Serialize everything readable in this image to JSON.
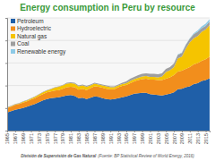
{
  "chart_data": {
    "type": "area",
    "stacked": true,
    "title": "Energy consumption in Peru by resource",
    "annotations": [
      "División de Supervisión de Gas Natural",
      "(Fuente: BP Statistical Review of World Energy, 2016)"
    ],
    "x": [
      1965,
      1966,
      1967,
      1968,
      1969,
      1970,
      1971,
      1972,
      1973,
      1974,
      1975,
      1976,
      1977,
      1978,
      1979,
      1980,
      1981,
      1982,
      1983,
      1984,
      1985,
      1986,
      1987,
      1988,
      1989,
      1990,
      1991,
      1992,
      1993,
      1994,
      1995,
      1996,
      1997,
      1998,
      1999,
      2000,
      2001,
      2002,
      2003,
      2004,
      2005,
      2006,
      2007,
      2008,
      2009,
      2010,
      2011,
      2012,
      2013,
      2014,
      2015,
      2016
    ],
    "xlim": [
      1965,
      2016
    ],
    "xticks": [
      1965,
      1967,
      1969,
      1971,
      1973,
      1975,
      1977,
      1979,
      1981,
      1983,
      1985,
      1987,
      1989,
      1991,
      1993,
      1995,
      1997,
      1999,
      2001,
      2003,
      2005,
      2007,
      2009,
      2011,
      2013,
      2015
    ],
    "ylim": [
      0,
      25
    ],
    "yticks": [
      0,
      5,
      10,
      15,
      20,
      25
    ],
    "grid": true,
    "tick_labels": "x",
    "legend": "top-left",
    "series": [
      {
        "name": "Petroleum",
        "color": "#1f5fa8",
        "values": [
          4.0,
          4.3,
          4.6,
          4.8,
          5.0,
          5.3,
          5.6,
          5.9,
          6.3,
          6.7,
          7.0,
          7.2,
          7.3,
          7.4,
          7.6,
          7.8,
          7.9,
          7.7,
          7.2,
          7.3,
          7.0,
          7.3,
          7.6,
          7.5,
          7.2,
          7.0,
          6.9,
          7.0,
          7.2,
          7.4,
          7.6,
          7.9,
          8.2,
          8.3,
          8.4,
          8.4,
          8.1,
          8.0,
          7.9,
          7.8,
          8.0,
          8.2,
          8.5,
          9.2,
          9.3,
          9.6,
          9.8,
          10.3,
          10.5,
          11.0,
          11.2,
          11.6
        ]
      },
      {
        "name": "Hydroelectric",
        "color": "#f28e1c",
        "values": [
          1.0,
          1.0,
          1.1,
          1.1,
          1.2,
          1.2,
          1.3,
          1.3,
          1.4,
          1.4,
          1.5,
          1.5,
          1.6,
          1.6,
          1.7,
          1.8,
          1.8,
          1.9,
          1.9,
          2.0,
          2.0,
          2.1,
          2.2,
          2.2,
          2.3,
          2.3,
          2.3,
          2.2,
          2.4,
          2.5,
          2.5,
          2.6,
          2.7,
          2.9,
          3.0,
          3.1,
          3.2,
          3.3,
          3.3,
          3.4,
          3.5,
          3.6,
          3.8,
          3.9,
          4.0,
          4.1,
          4.3,
          4.4,
          4.5,
          4.5,
          4.6,
          4.8
        ]
      },
      {
        "name": "Natural gas",
        "color": "#f5c400",
        "values": [
          0.1,
          0.1,
          0.1,
          0.1,
          0.2,
          0.2,
          0.2,
          0.3,
          0.3,
          0.4,
          0.4,
          0.5,
          0.6,
          0.7,
          0.7,
          0.8,
          0.8,
          0.8,
          0.7,
          0.7,
          0.7,
          0.6,
          0.6,
          0.5,
          0.5,
          0.5,
          0.4,
          0.4,
          0.4,
          0.4,
          0.4,
          0.5,
          0.5,
          0.5,
          0.6,
          0.6,
          0.6,
          0.6,
          0.6,
          0.8,
          1.5,
          1.6,
          1.8,
          2.9,
          3.1,
          4.5,
          5.5,
          5.8,
          6.0,
          6.4,
          6.6,
          7.0
        ]
      },
      {
        "name": "Coal",
        "color": "#9e9e9e",
        "values": [
          0.1,
          0.1,
          0.1,
          0.1,
          0.1,
          0.1,
          0.1,
          0.1,
          0.1,
          0.1,
          0.1,
          0.1,
          0.1,
          0.1,
          0.1,
          0.2,
          0.2,
          0.2,
          0.2,
          0.2,
          0.2,
          0.2,
          0.2,
          0.2,
          0.2,
          0.2,
          0.2,
          0.2,
          0.2,
          0.3,
          0.4,
          0.5,
          0.5,
          0.6,
          0.6,
          0.6,
          0.7,
          0.7,
          0.7,
          0.7,
          0.7,
          0.7,
          0.8,
          0.8,
          0.8,
          0.8,
          0.8,
          0.9,
          0.9,
          0.8,
          0.8,
          0.8
        ]
      },
      {
        "name": "Renewable energy",
        "color": "#8ecae6",
        "values": [
          0,
          0,
          0,
          0,
          0,
          0,
          0,
          0,
          0,
          0,
          0,
          0,
          0,
          0,
          0,
          0,
          0,
          0,
          0,
          0,
          0,
          0,
          0,
          0,
          0,
          0,
          0,
          0,
          0,
          0,
          0,
          0,
          0,
          0,
          0,
          0,
          0,
          0,
          0,
          0,
          0,
          0,
          0,
          0.1,
          0.1,
          0.1,
          0.1,
          0.2,
          0.3,
          0.4,
          0.5,
          0.5
        ]
      }
    ]
  }
}
